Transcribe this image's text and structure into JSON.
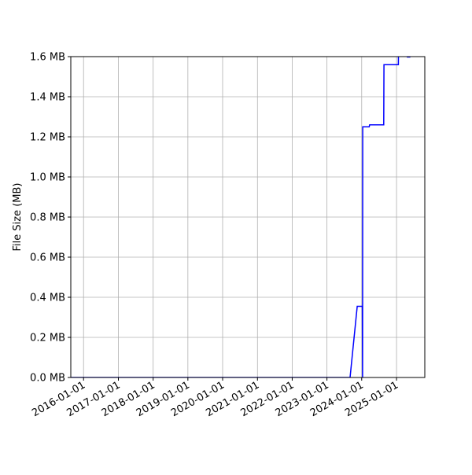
{
  "chart_data": {
    "type": "line",
    "title": "",
    "xlabel": "",
    "ylabel": "File Size (MB)",
    "xlim": [
      "2015-08-20",
      "2025-10-25"
    ],
    "ylim": [
      0,
      1.6
    ],
    "grid": true,
    "x_ticks": [
      "2016-01-01",
      "2017-01-01",
      "2018-01-01",
      "2019-01-01",
      "2020-01-01",
      "2021-01-01",
      "2022-01-01",
      "2023-01-01",
      "2024-01-01",
      "2025-01-01"
    ],
    "y_ticks": [
      0,
      0.2,
      0.4,
      0.6,
      0.8,
      1.0,
      1.2,
      1.4,
      1.6
    ],
    "y_tick_labels": [
      "0.0 MB",
      "0.2 MB",
      "0.4 MB",
      "0.6 MB",
      "0.8 MB",
      "1.0 MB",
      "1.2 MB",
      "1.4 MB",
      "1.6 MB"
    ],
    "series": [
      {
        "color": "#0000ff",
        "points": [
          [
            "2015-08-20",
            0
          ],
          [
            "2023-09-01",
            0
          ],
          [
            "2023-11-15",
            0.355
          ],
          [
            "2024-01-08",
            0.355
          ],
          [
            "2024-01-10",
            0
          ],
          [
            "2024-01-12",
            1.25
          ],
          [
            "2024-03-20",
            1.25
          ],
          [
            "2024-03-25",
            1.26
          ],
          [
            "2024-08-20",
            1.26
          ],
          [
            "2024-08-22",
            1.56
          ],
          [
            "2025-01-20",
            1.56
          ],
          [
            "2025-01-22",
            1.65
          ],
          [
            "2025-04-20",
            1.65
          ],
          [
            "2025-04-25",
            1.598
          ],
          [
            "2025-05-20",
            1.598
          ],
          [
            "2025-05-25",
            1.65
          ]
        ]
      }
    ]
  }
}
